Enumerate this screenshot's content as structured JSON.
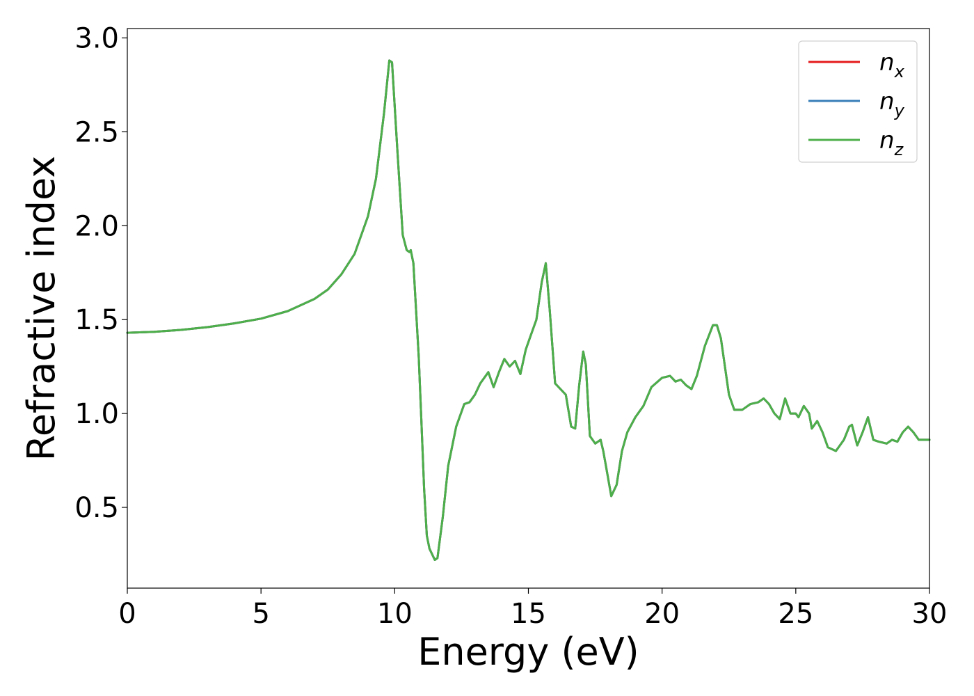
{
  "chart_data": {
    "type": "line",
    "title": "",
    "xlabel": "Energy (eV)",
    "ylabel": "Refractive index",
    "xlim": [
      0,
      30
    ],
    "ylim": [
      0.07,
      3.05
    ],
    "xticks": [
      0,
      5,
      10,
      15,
      20,
      25,
      30
    ],
    "xtick_labels": [
      "0",
      "5",
      "10",
      "15",
      "20",
      "25",
      "30"
    ],
    "yticks": [
      0.5,
      1.0,
      1.5,
      2.0,
      2.5,
      3.0
    ],
    "ytick_labels": [
      "0.5",
      "1.0",
      "1.5",
      "2.0",
      "2.5",
      "3.0"
    ],
    "grid": false,
    "legend_position": "top-right",
    "series": [
      {
        "name": "n_x",
        "label_base": "n",
        "label_sub": "x",
        "color": "#e41a1c"
      },
      {
        "name": "n_y",
        "label_base": "n",
        "label_sub": "y",
        "color": "#377eb8"
      },
      {
        "name": "n_z",
        "label_base": "n",
        "label_sub": "z",
        "color": "#4daf4a"
      }
    ],
    "x": [
      0,
      1,
      2,
      3,
      4,
      5,
      6,
      7,
      7.5,
      8,
      8.5,
      9,
      9.3,
      9.6,
      9.8,
      9.9,
      10.1,
      10.3,
      10.45,
      10.55,
      10.6,
      10.7,
      10.9,
      11.0,
      11.1,
      11.2,
      11.3,
      11.5,
      11.6,
      11.8,
      12.0,
      12.3,
      12.6,
      12.8,
      13.0,
      13.2,
      13.5,
      13.7,
      13.9,
      14.1,
      14.3,
      14.5,
      14.7,
      14.9,
      15.1,
      15.3,
      15.5,
      15.65,
      15.8,
      16.0,
      16.2,
      16.4,
      16.6,
      16.75,
      16.9,
      17.05,
      17.15,
      17.3,
      17.5,
      17.7,
      17.8,
      17.9,
      18.1,
      18.3,
      18.5,
      18.7,
      19.0,
      19.3,
      19.6,
      20.0,
      20.3,
      20.5,
      20.7,
      20.9,
      21.1,
      21.3,
      21.6,
      21.9,
      22.05,
      22.2,
      22.5,
      22.7,
      23.0,
      23.3,
      23.6,
      23.8,
      24.0,
      24.2,
      24.4,
      24.6,
      24.8,
      25.0,
      25.1,
      25.3,
      25.5,
      25.6,
      25.8,
      26.0,
      26.2,
      26.5,
      26.8,
      27.0,
      27.1,
      27.3,
      27.5,
      27.7,
      27.9,
      28.1,
      28.4,
      28.6,
      28.8,
      29.0,
      29.2,
      29.4,
      29.6,
      29.8,
      30.0
    ],
    "y": [
      1.43,
      1.435,
      1.445,
      1.46,
      1.48,
      1.505,
      1.545,
      1.61,
      1.66,
      1.74,
      1.85,
      2.05,
      2.25,
      2.6,
      2.88,
      2.87,
      2.4,
      1.95,
      1.87,
      1.86,
      1.87,
      1.8,
      1.3,
      0.95,
      0.6,
      0.35,
      0.28,
      0.22,
      0.23,
      0.45,
      0.72,
      0.93,
      1.05,
      1.06,
      1.1,
      1.16,
      1.22,
      1.14,
      1.22,
      1.29,
      1.25,
      1.28,
      1.21,
      1.34,
      1.42,
      1.5,
      1.7,
      1.8,
      1.55,
      1.16,
      1.13,
      1.1,
      0.93,
      0.92,
      1.15,
      1.33,
      1.26,
      0.88,
      0.84,
      0.86,
      0.8,
      0.72,
      0.56,
      0.62,
      0.8,
      0.9,
      0.98,
      1.04,
      1.14,
      1.19,
      1.2,
      1.17,
      1.18,
      1.15,
      1.13,
      1.2,
      1.36,
      1.47,
      1.47,
      1.4,
      1.1,
      1.02,
      1.02,
      1.05,
      1.06,
      1.08,
      1.05,
      1.0,
      0.97,
      1.08,
      1.0,
      1.0,
      0.98,
      1.04,
      1.0,
      0.92,
      0.96,
      0.9,
      0.82,
      0.8,
      0.86,
      0.93,
      0.94,
      0.83,
      0.9,
      0.98,
      0.86,
      0.85,
      0.84,
      0.86,
      0.85,
      0.9,
      0.93,
      0.9,
      0.86,
      0.86,
      0.86
    ]
  }
}
